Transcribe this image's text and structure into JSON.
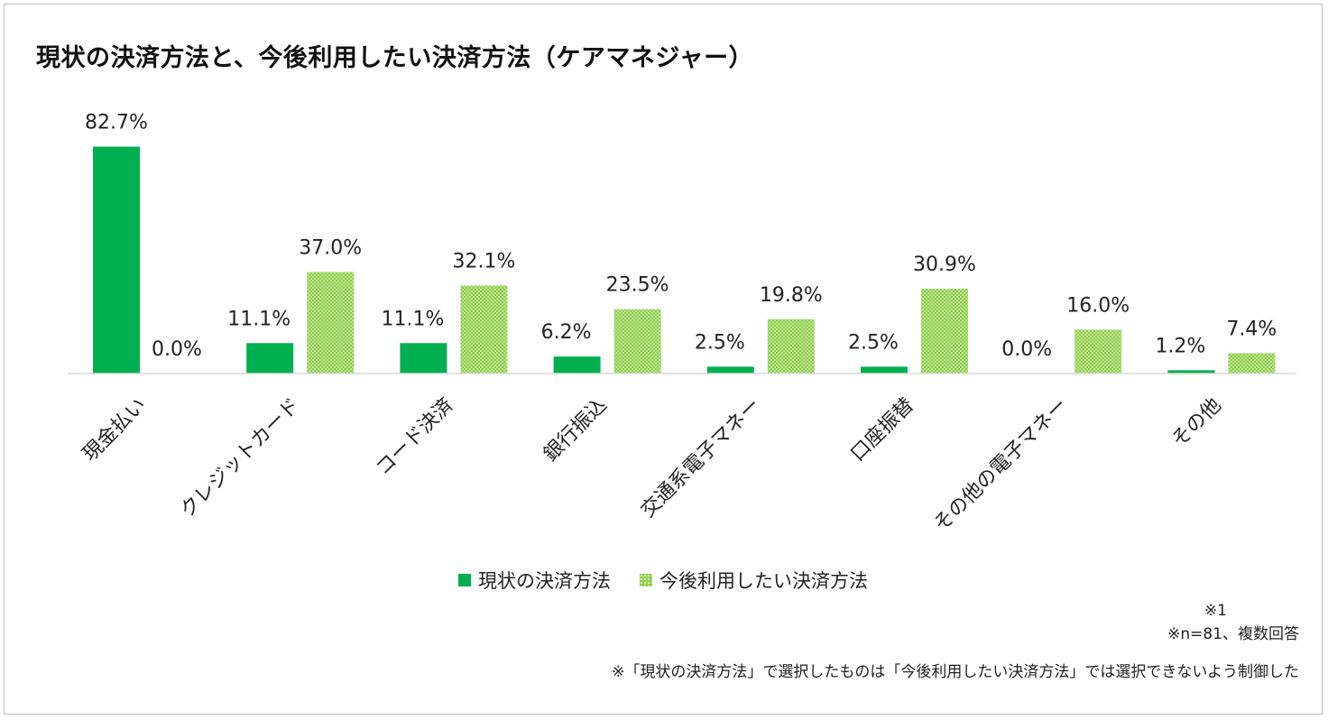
{
  "title": "現状の決済方法と、今後利用したい決済方法（ケアマネジャー）",
  "chart_data": {
    "type": "bar",
    "title": "現状の決済方法と、今後利用したい決済方法（ケアマネジャー）",
    "categories": [
      "現金払い",
      "クレジットカード",
      "コード決済",
      "銀行振込",
      "交通系電子マネー",
      "口座振替",
      "その他の電子マネー",
      "その他"
    ],
    "series": [
      {
        "name": "現状の決済方法",
        "color": "#00b050",
        "values": [
          82.7,
          11.1,
          11.1,
          6.2,
          2.5,
          2.5,
          0.0,
          1.2
        ],
        "labels": [
          "82.7%",
          "11.1%",
          "11.1%",
          "6.2%",
          "2.5%",
          "2.5%",
          "0.0%",
          "1.2%"
        ]
      },
      {
        "name": "今後利用したい決済方法",
        "color": "#92d050",
        "values": [
          0.0,
          37.0,
          32.1,
          23.5,
          19.8,
          30.9,
          16.0,
          7.4
        ],
        "labels": [
          "0.0%",
          "37.0%",
          "32.1%",
          "23.5%",
          "19.8%",
          "30.9%",
          "16.0%",
          "7.4%"
        ]
      }
    ],
    "xlabel": "",
    "ylabel": "",
    "ylim": [
      0,
      85
    ],
    "legend": "bottom"
  },
  "notes": {
    "ref": "※1",
    "sample": "※n=81、複数回答",
    "footnote": "※「現状の決済方法」で選択したものは「今後利用したい決済方法」では選択できないよう制御した"
  }
}
